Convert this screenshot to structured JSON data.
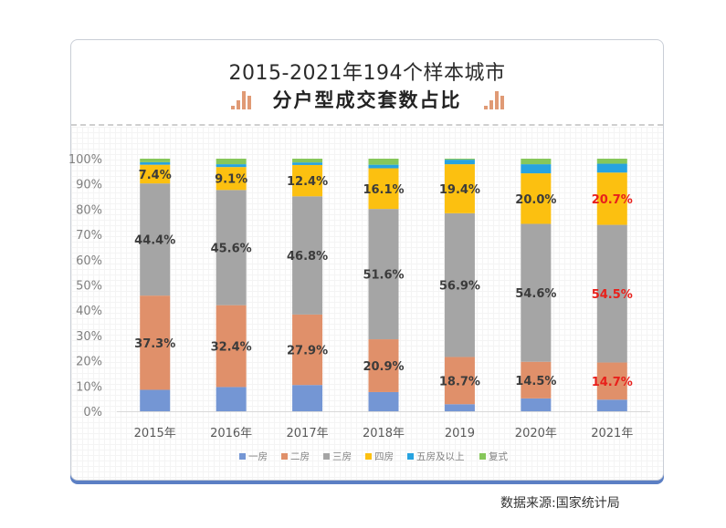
{
  "header": {
    "title_line1": "2015-2021年194个样本城市",
    "title_line2": "分户型成交套数占比"
  },
  "source_note": "数据来源:国家统计局",
  "colors": {
    "一房": "#7496d4",
    "二房": "#e0906a",
    "三房": "#a5a5a5",
    "四房": "#fcc010",
    "五房及以上": "#27a3e0",
    "复式": "#86c75a",
    "label_default": "#3b3b3b",
    "label_highlight": "#e8201b",
    "icon": "#e09a75"
  },
  "chart_data": {
    "type": "bar",
    "stacked": true,
    "title": "2015-2021年194个样本城市 分户型成交套数占比",
    "xlabel": "",
    "ylabel": "",
    "ylim": [
      0,
      100
    ],
    "y_ticks": [
      "0%",
      "10%",
      "20%",
      "30%",
      "40%",
      "50%",
      "60%",
      "70%",
      "80%",
      "90%",
      "100%"
    ],
    "grid": false,
    "legend_position": "bottom",
    "categories": [
      "2015年",
      "2016年",
      "2017年",
      "2018年",
      "2019",
      "2020年",
      "2021年"
    ],
    "series": [
      {
        "name": "一房",
        "values": [
          8.5,
          9.6,
          10.4,
          7.6,
          2.8,
          5.1,
          4.6
        ]
      },
      {
        "name": "二房",
        "values": [
          37.3,
          32.4,
          27.9,
          20.9,
          18.7,
          14.5,
          14.7
        ]
      },
      {
        "name": "三房",
        "values": [
          44.4,
          45.6,
          46.8,
          51.6,
          56.9,
          54.6,
          54.5
        ]
      },
      {
        "name": "四房",
        "values": [
          7.4,
          9.1,
          12.4,
          16.1,
          19.4,
          20.0,
          20.7
        ]
      },
      {
        "name": "五房及以上",
        "values": [
          1.0,
          1.1,
          1.0,
          1.4,
          1.8,
          3.6,
          3.5
        ]
      },
      {
        "name": "复式",
        "values": [
          1.4,
          2.2,
          1.5,
          2.4,
          0.4,
          2.2,
          2.0
        ]
      }
    ],
    "data_labels": [
      {
        "series": "二房",
        "labels": [
          "37.3%",
          "32.4%",
          "27.9%",
          "20.9%",
          "18.7%",
          "14.5%",
          "14.7%"
        ]
      },
      {
        "series": "三房",
        "labels": [
          "44.4%",
          "45.6%",
          "46.8%",
          "51.6%",
          "56.9%",
          "54.6%",
          "54.5%"
        ]
      },
      {
        "series": "四房",
        "labels": [
          "7.4%",
          "9.1%",
          "12.4%",
          "16.1%",
          "19.4%",
          "20.0%",
          "20.7%"
        ]
      }
    ],
    "highlighted_category": "2021年"
  }
}
